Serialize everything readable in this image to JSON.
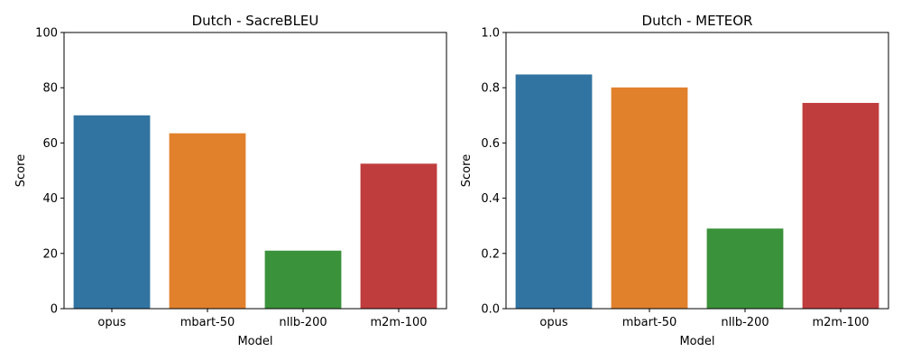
{
  "chart_data": [
    {
      "type": "bar",
      "title": "Dutch - SacreBLEU",
      "xlabel": "Model",
      "ylabel": "Score",
      "categories": [
        "opus",
        "mbart-50",
        "nllb-200",
        "m2m-100"
      ],
      "values": [
        70,
        63.5,
        21,
        52.5
      ],
      "colors": [
        "#3274a1",
        "#e1812c",
        "#3a923a",
        "#c03d3e"
      ],
      "ylim": [
        0,
        100
      ],
      "yticks": [
        0,
        20,
        40,
        60,
        80,
        100
      ],
      "ytick_labels": [
        "0",
        "20",
        "40",
        "60",
        "80",
        "100"
      ],
      "grid": false,
      "legend": "none"
    },
    {
      "type": "bar",
      "title": "Dutch - METEOR",
      "xlabel": "Model",
      "ylabel": "Score",
      "categories": [
        "opus",
        "mbart-50",
        "nllb-200",
        "m2m-100"
      ],
      "values": [
        0.848,
        0.801,
        0.29,
        0.745
      ],
      "colors": [
        "#3274a1",
        "#e1812c",
        "#3a923a",
        "#c03d3e"
      ],
      "ylim": [
        0,
        1
      ],
      "yticks": [
        0,
        0.2,
        0.4,
        0.6,
        0.8,
        1.0
      ],
      "ytick_labels": [
        "0.0",
        "0.2",
        "0.4",
        "0.6",
        "0.8",
        "1.0"
      ],
      "grid": false,
      "legend": "none"
    }
  ]
}
